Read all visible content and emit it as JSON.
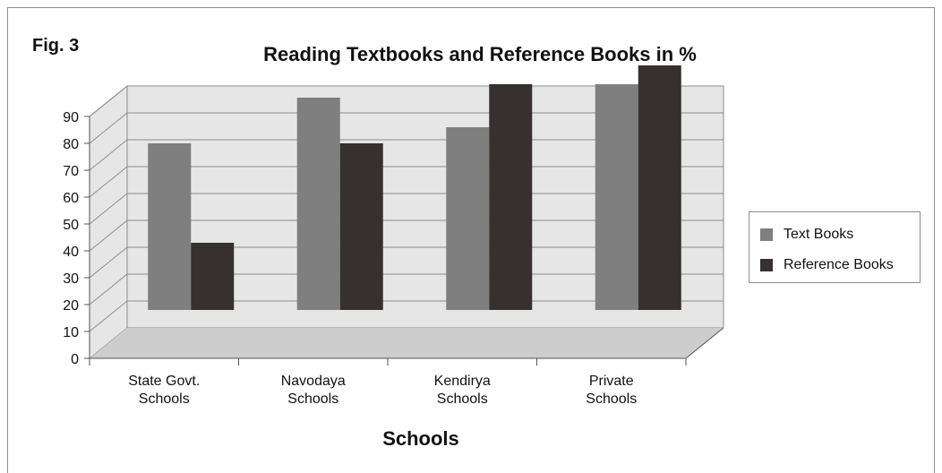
{
  "figure": {
    "label": "Fig. 3"
  },
  "colors": {
    "text_books": "#7f7f7f",
    "reference_books": "#363130",
    "wall": "#e6e6e6",
    "floor": "#cdcdcd",
    "grid": "#8c8c8c"
  },
  "chart_data": {
    "type": "bar",
    "title": "Reading Textbooks and Reference Books in %",
    "xlabel": "Schools",
    "ylabel": "",
    "categories": [
      [
        "State Govt.",
        "Schools"
      ],
      [
        "Navodaya",
        "Schools"
      ],
      [
        "Kendirya",
        "Schools"
      ],
      [
        "Private",
        "Schools"
      ]
    ],
    "series": [
      {
        "name": "Text Books",
        "values": [
          62,
          79,
          68,
          84
        ]
      },
      {
        "name": "Reference Books",
        "values": [
          25,
          62,
          84,
          91
        ]
      }
    ],
    "ylim": [
      0,
      90
    ],
    "yticks": [
      0,
      10,
      20,
      30,
      40,
      50,
      60,
      70,
      80,
      90
    ],
    "grid": true,
    "legend_position": "right",
    "style": "3d-bar"
  }
}
